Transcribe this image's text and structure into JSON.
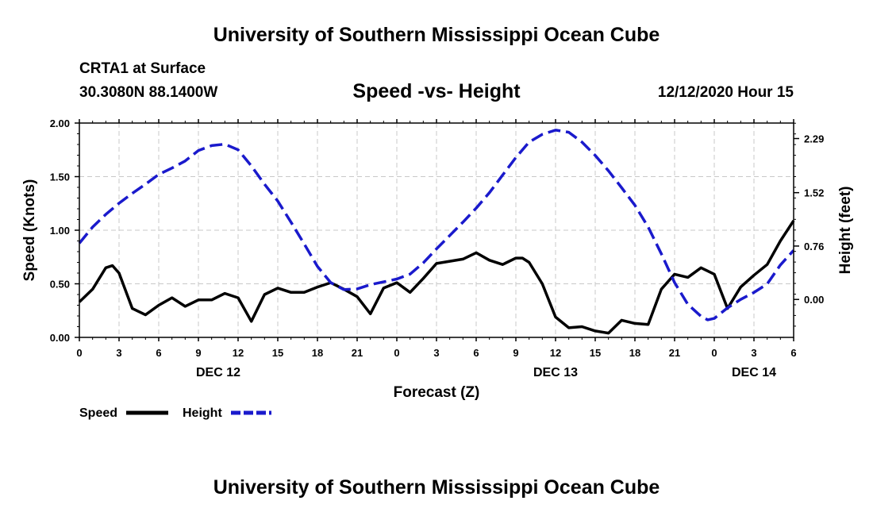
{
  "header": {
    "title": "University of Southern Mississippi Ocean Cube",
    "station": "CRTA1 at Surface",
    "coords": "30.3080N 88.1400W",
    "chart_title": "Speed -vs- Height",
    "date_hour": "12/12/2020 Hour 15"
  },
  "footer": {
    "title": "University of Southern Mississippi Ocean Cube"
  },
  "chart_data": {
    "type": "line",
    "title": "Speed -vs- Height",
    "xlabel": "Forecast (Z)",
    "ylabel": "Speed (Knots)",
    "y2label": "Height (feet)",
    "x_unit": "hours since 00Z Dec 12",
    "xlim": [
      0,
      54
    ],
    "ylim": [
      0,
      2.0
    ],
    "y2lim": [
      -0.5399,
      2.5106
    ],
    "grid": true,
    "x_ticks": [
      {
        "x": 0,
        "label": "0"
      },
      {
        "x": 3,
        "label": "3"
      },
      {
        "x": 6,
        "label": "6"
      },
      {
        "x": 9,
        "label": "9"
      },
      {
        "x": 12,
        "label": "12"
      },
      {
        "x": 15,
        "label": "15"
      },
      {
        "x": 18,
        "label": "18"
      },
      {
        "x": 21,
        "label": "21"
      },
      {
        "x": 24,
        "label": "0"
      },
      {
        "x": 27,
        "label": "3"
      },
      {
        "x": 30,
        "label": "6"
      },
      {
        "x": 33,
        "label": "9"
      },
      {
        "x": 36,
        "label": "12"
      },
      {
        "x": 39,
        "label": "15"
      },
      {
        "x": 42,
        "label": "18"
      },
      {
        "x": 45,
        "label": "21"
      },
      {
        "x": 48,
        "label": "0"
      },
      {
        "x": 51,
        "label": "3"
      },
      {
        "x": 54,
        "label": "6"
      }
    ],
    "day_labels": [
      {
        "x": 10.5,
        "label": "DEC 12"
      },
      {
        "x": 36,
        "label": "DEC 13"
      },
      {
        "x": 51,
        "label": "DEC 14"
      }
    ],
    "y_ticks": [
      {
        "y": 0,
        "label": "0.00"
      },
      {
        "y": 0.5,
        "label": "0.50"
      },
      {
        "y": 1.0,
        "label": "1.00"
      },
      {
        "y": 1.5,
        "label": "1.50"
      },
      {
        "y": 2.0,
        "label": "2.00"
      }
    ],
    "y2_ticks": [
      {
        "y": 0,
        "label": "0.00"
      },
      {
        "y": 0.76,
        "label": "0.76"
      },
      {
        "y": 1.52,
        "label": "1.52"
      },
      {
        "y": 2.29,
        "label": "2.29"
      }
    ],
    "legend": [
      {
        "name": "Speed",
        "color": "#000000",
        "style": "solid"
      },
      {
        "name": "Height",
        "color": "#1a1acc",
        "style": "dashed"
      }
    ],
    "series": [
      {
        "name": "Speed",
        "axis": "left",
        "color": "#000000",
        "style": "solid",
        "x": [
          0,
          1,
          2,
          2.5,
          3,
          4,
          5,
          6,
          7,
          8,
          9,
          10,
          11,
          12,
          13,
          14,
          15,
          16,
          17,
          18,
          19,
          20,
          21,
          22,
          23,
          24,
          25,
          26,
          27,
          28,
          29,
          30,
          31,
          32,
          33,
          33.5,
          34,
          35,
          36,
          37,
          38,
          39,
          40,
          41,
          42,
          43,
          44,
          45,
          46,
          47,
          48,
          49,
          50,
          51,
          52,
          53,
          54
        ],
        "values": [
          0.33,
          0.45,
          0.65,
          0.67,
          0.6,
          0.27,
          0.21,
          0.3,
          0.37,
          0.29,
          0.35,
          0.35,
          0.41,
          0.37,
          0.15,
          0.4,
          0.46,
          0.42,
          0.42,
          0.47,
          0.51,
          0.45,
          0.38,
          0.22,
          0.46,
          0.51,
          0.42,
          0.55,
          0.69,
          0.71,
          0.73,
          0.79,
          0.72,
          0.68,
          0.74,
          0.74,
          0.7,
          0.5,
          0.19,
          0.09,
          0.1,
          0.06,
          0.04,
          0.16,
          0.13,
          0.12,
          0.45,
          0.59,
          0.56,
          0.65,
          0.59,
          0.27,
          0.47,
          0.58,
          0.68,
          0.9,
          1.09
        ]
      },
      {
        "name": "Height",
        "axis": "right",
        "color": "#1a1acc",
        "style": "dashed",
        "x": [
          0,
          1,
          2,
          3,
          4,
          5,
          6,
          7,
          8,
          9,
          10,
          11,
          12,
          13,
          14,
          15,
          16,
          17,
          18,
          19,
          20,
          21,
          22,
          23,
          24,
          25,
          26,
          27,
          28,
          29,
          30,
          31,
          32,
          33,
          34,
          35,
          36,
          37,
          38,
          39,
          40,
          41,
          42,
          43,
          44,
          45,
          46,
          47,
          47.5,
          48,
          49,
          50,
          51,
          52,
          53,
          54
        ],
        "values": [
          0.8,
          1.03,
          1.21,
          1.37,
          1.51,
          1.64,
          1.78,
          1.87,
          1.97,
          2.12,
          2.19,
          2.21,
          2.13,
          1.9,
          1.64,
          1.4,
          1.1,
          0.79,
          0.47,
          0.24,
          0.14,
          0.15,
          0.21,
          0.25,
          0.29,
          0.36,
          0.52,
          0.72,
          0.91,
          1.1,
          1.3,
          1.52,
          1.77,
          2.02,
          2.24,
          2.35,
          2.41,
          2.38,
          2.24,
          2.05,
          1.83,
          1.59,
          1.34,
          1.03,
          0.65,
          0.24,
          -0.07,
          -0.24,
          -0.29,
          -0.27,
          -0.12,
          0.0,
          0.1,
          0.22,
          0.49,
          0.7
        ]
      }
    ]
  }
}
